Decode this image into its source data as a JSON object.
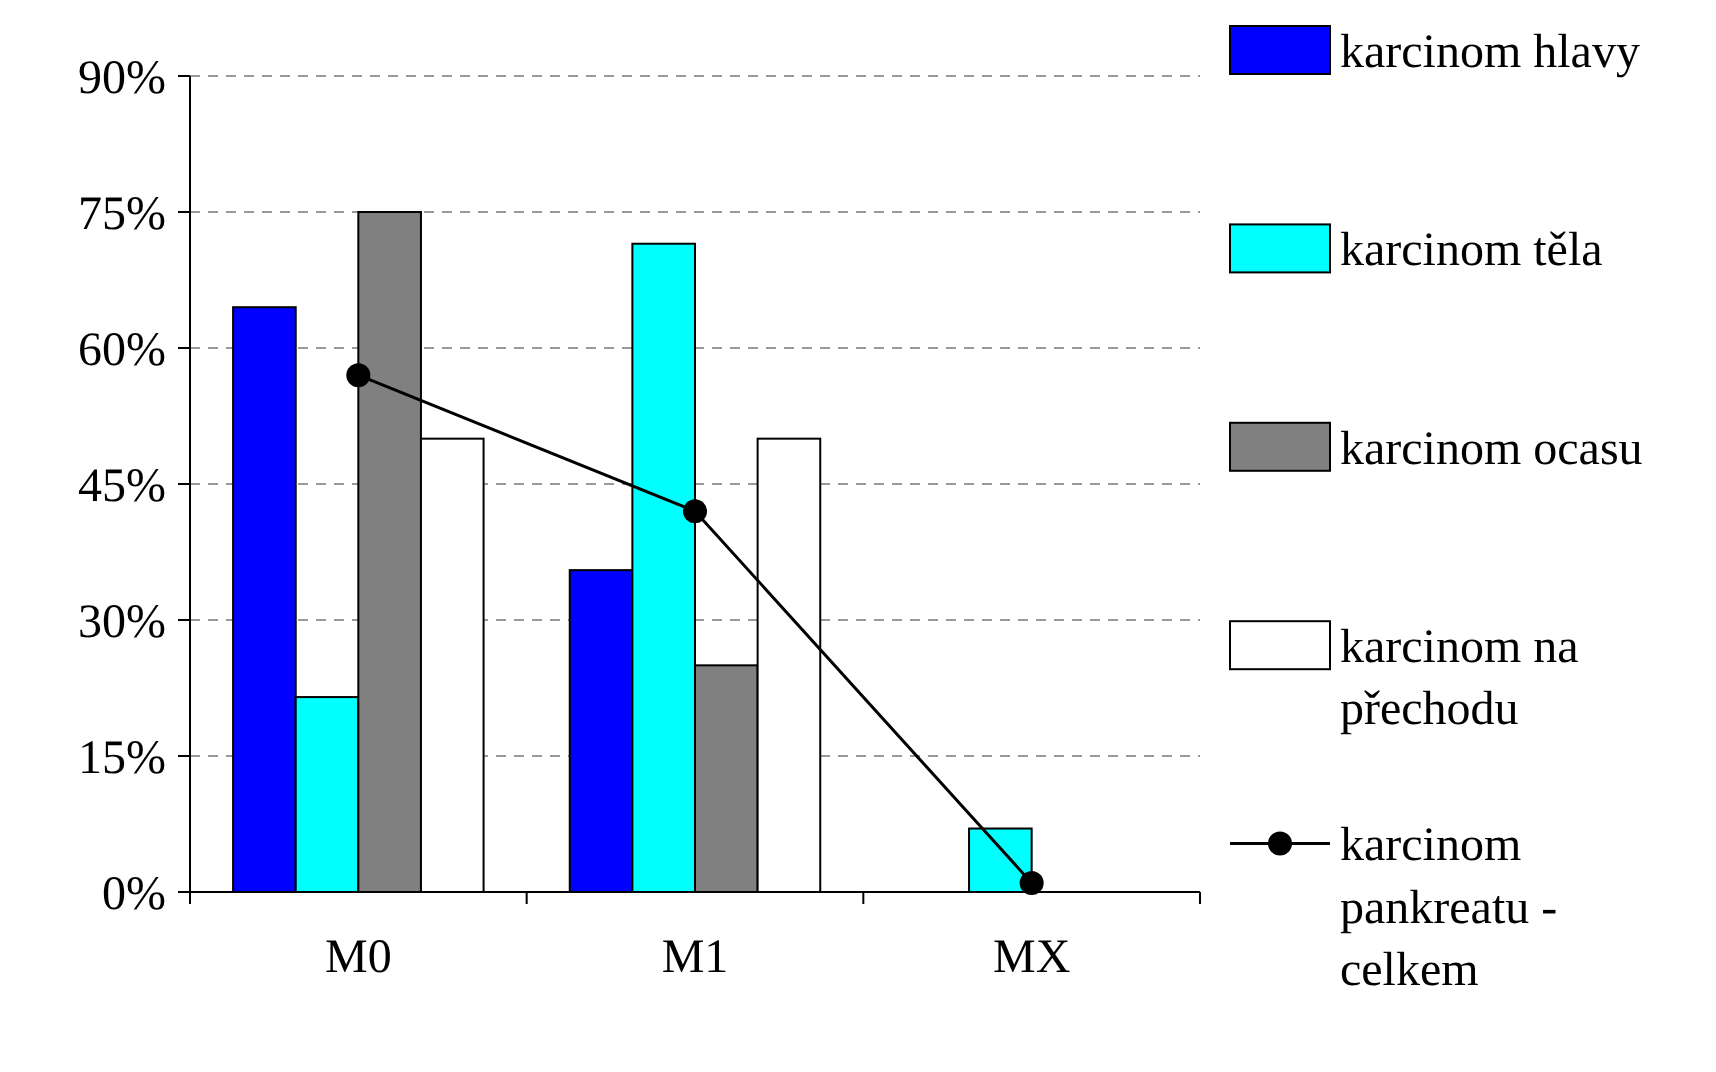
{
  "chart_data": {
    "type": "bar",
    "categories": [
      "M0",
      "M1",
      "MX"
    ],
    "ylim": [
      0,
      90
    ],
    "yticks": [
      {
        "value": 0,
        "label": "0%"
      },
      {
        "value": 15,
        "label": "15%"
      },
      {
        "value": 30,
        "label": "30%"
      },
      {
        "value": 45,
        "label": "45%"
      },
      {
        "value": 60,
        "label": "60%"
      },
      {
        "value": 75,
        "label": "75%"
      },
      {
        "value": 90,
        "label": "90%"
      }
    ],
    "grid": "y",
    "legend": "right",
    "series": [
      {
        "name": "karcinom hlavy",
        "color": "#0000ff",
        "values": [
          64.5,
          35.5,
          0
        ]
      },
      {
        "name": "karcinom těla",
        "color": "#00ffff",
        "values": [
          21.5,
          71.5,
          7
        ]
      },
      {
        "name": "karcinom ocasu",
        "color": "#808080",
        "values": [
          75,
          25,
          0
        ]
      },
      {
        "name": "karcinom na přechodu",
        "color": "#ffffff",
        "values": [
          50,
          50,
          0
        ]
      },
      {
        "name": "karcinom pankreatu - celkem",
        "color": "#000000",
        "type": "line",
        "marker": "circle",
        "values": [
          57,
          42,
          1
        ]
      }
    ]
  }
}
